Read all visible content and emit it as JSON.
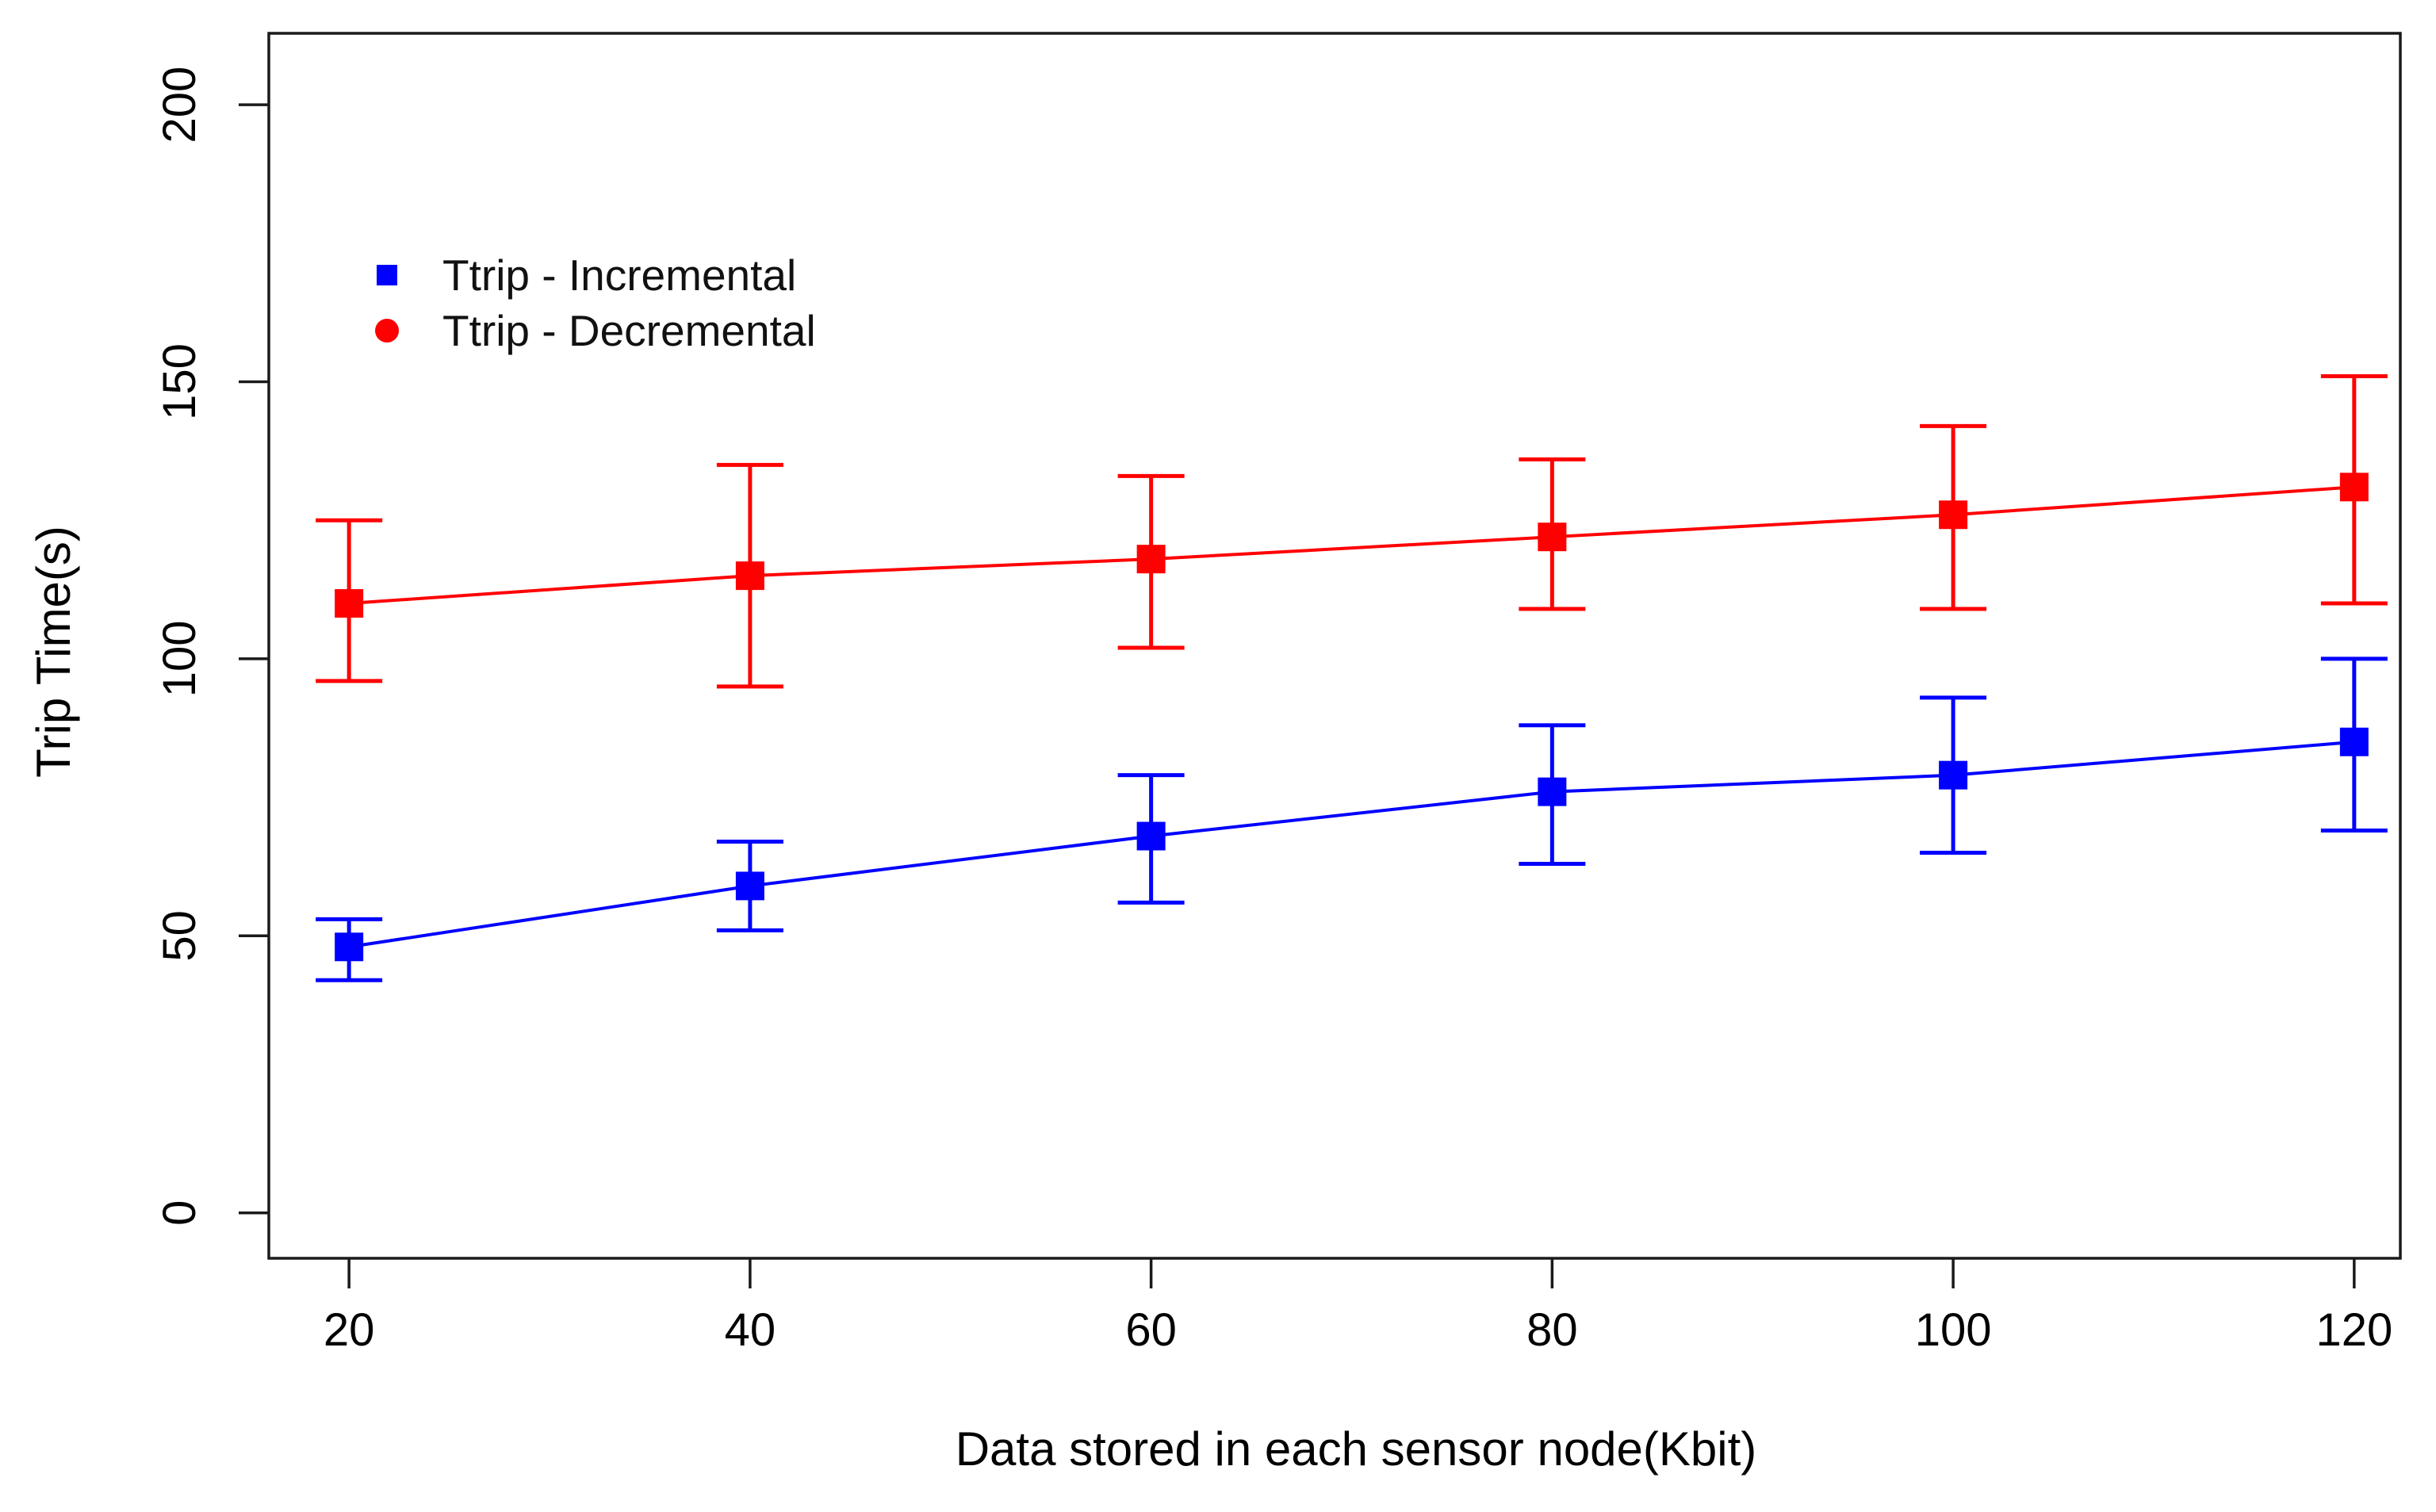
{
  "chart_data": {
    "type": "line",
    "title": "",
    "xlabel": "Data stored in each sensor node(Kbit)",
    "ylabel": "Trip Time(s)",
    "x": [
      20,
      40,
      60,
      80,
      100,
      120
    ],
    "xticks": [
      "20",
      "40",
      "60",
      "80",
      "100",
      "120"
    ],
    "yticks": [
      "0",
      "50",
      "100",
      "150",
      "200"
    ],
    "xtick_values": [
      20,
      40,
      60,
      80,
      100,
      120
    ],
    "ytick_values": [
      0,
      50,
      100,
      150,
      200
    ],
    "xlim": [
      16,
      122.3
    ],
    "ylim": [
      -8.2,
      212.9
    ],
    "grid": false,
    "legend_position": "inside-top-left",
    "error_bars": true,
    "series": [
      {
        "name": "Ttrip - Incremental",
        "color": "#0000ff",
        "plot_marker": "square",
        "legend_marker": "square",
        "values": [
          48,
          59,
          68,
          76,
          79,
          85
        ],
        "err_low": [
          42,
          51,
          56,
          63,
          65,
          69
        ],
        "err_high": [
          53,
          67,
          79,
          88,
          93,
          100
        ]
      },
      {
        "name": "Ttrip - Decremental",
        "color": "#ff0000",
        "plot_marker": "square",
        "legend_marker": "circle",
        "values": [
          110,
          115,
          118,
          122,
          126,
          131
        ],
        "err_low": [
          96,
          95,
          102,
          109,
          109,
          110
        ],
        "err_high": [
          125,
          135,
          133,
          136,
          142,
          151
        ]
      }
    ],
    "axis_color": "#1a1a1a"
  }
}
